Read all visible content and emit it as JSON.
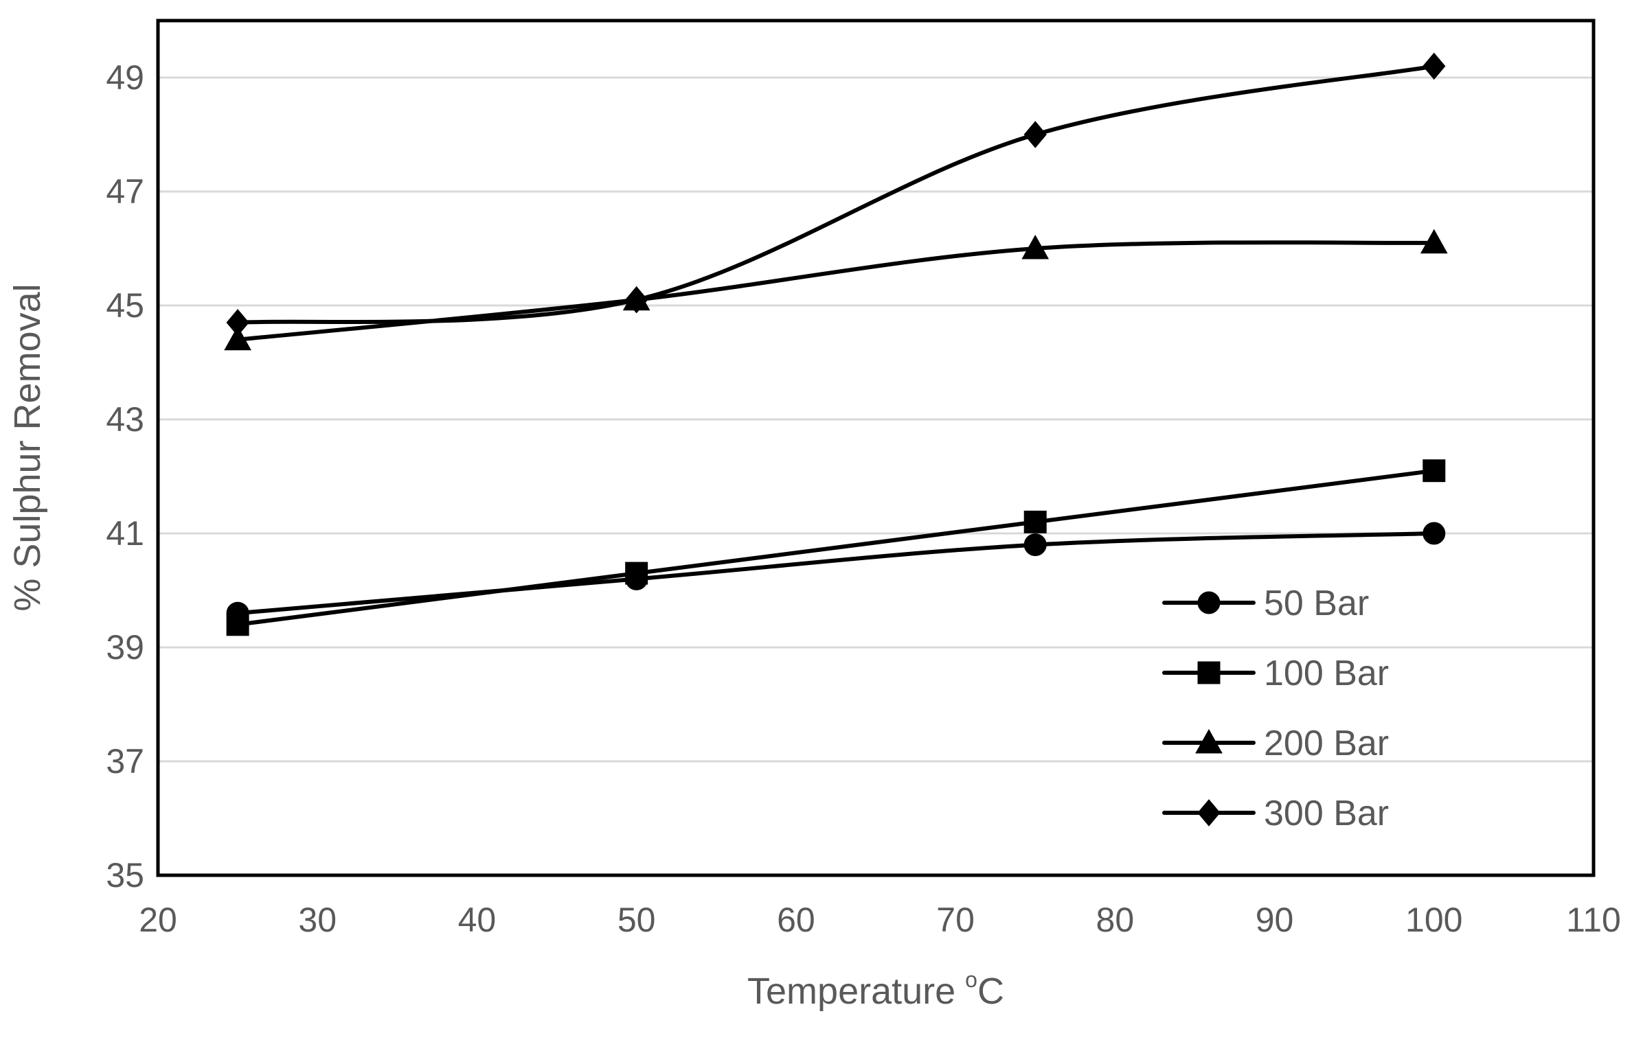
{
  "chart_data": {
    "type": "line",
    "title": "",
    "xlabel": "Temperature",
    "xlabel_unit": "°C",
    "xlabel_sup": "o",
    "xlabel_suffix": "C",
    "ylabel": "% Sulphur Removal",
    "xlim": [
      20,
      110
    ],
    "ylim": [
      35,
      50
    ],
    "x_ticks": [
      20,
      30,
      40,
      50,
      60,
      70,
      80,
      90,
      100,
      110
    ],
    "y_ticks": [
      35,
      37,
      39,
      41,
      43,
      45,
      47,
      49
    ],
    "grid": true,
    "legend_position": "bottom-right inside",
    "series": [
      {
        "name": "50 Bar",
        "marker": "circle",
        "x": [
          25,
          50,
          75,
          100
        ],
        "y": [
          39.6,
          40.2,
          40.8,
          41.0
        ]
      },
      {
        "name": "100 Bar",
        "marker": "square",
        "x": [
          25,
          50,
          75,
          100
        ],
        "y": [
          39.4,
          40.3,
          41.2,
          42.1
        ]
      },
      {
        "name": "200 Bar",
        "marker": "triangle",
        "x": [
          25,
          50,
          75,
          100
        ],
        "y": [
          44.4,
          45.1,
          46.0,
          46.1
        ]
      },
      {
        "name": "300 Bar",
        "marker": "diamond",
        "x": [
          25,
          50,
          75,
          100
        ],
        "y": [
          44.7,
          45.1,
          48.0,
          49.2
        ]
      }
    ]
  }
}
